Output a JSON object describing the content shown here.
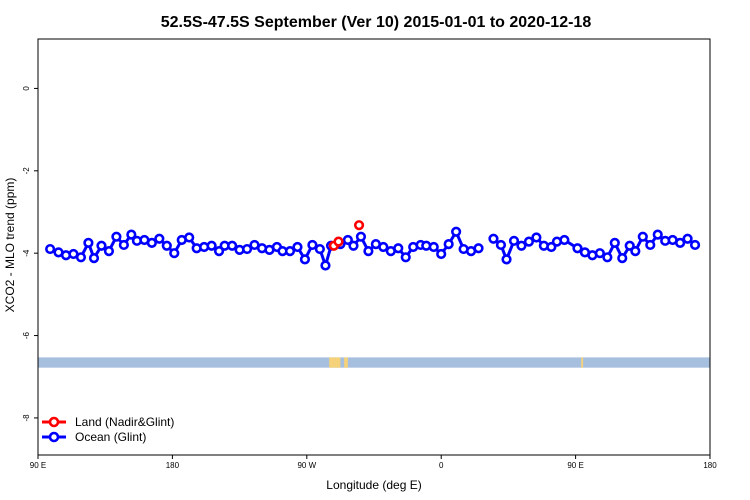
{
  "chart_data": {
    "type": "line",
    "title": "52.5S-47.5S September (Ver 10)   2015-01-01 to 2020-12-18",
    "xlabel": "Longitude (deg E)",
    "ylabel": "XCO2 - MLO trend (ppm)",
    "xlim": [
      90,
      450
    ],
    "ylim": [
      -8.9,
      1.2
    ],
    "x_ticks": [
      {
        "value": 90,
        "label": "90 E"
      },
      {
        "value": 162,
        "label": "180"
      },
      {
        "value": 234,
        "label": "90 W"
      },
      {
        "value": 306,
        "label": "0"
      },
      {
        "value": 378,
        "label": "90 E"
      },
      {
        "value": 450,
        "label": "180"
      }
    ],
    "y_ticks": [
      {
        "value": 0,
        "label": "0"
      },
      {
        "value": -2,
        "label": "-2"
      },
      {
        "value": -4,
        "label": "-4"
      },
      {
        "value": -6,
        "label": "-6"
      },
      {
        "value": -8,
        "label": "-8"
      }
    ],
    "series": [
      {
        "name": "Land (Nadir&Glint)",
        "color": "#ff0000",
        "points": [
          [
            248.5,
            -3.82
          ],
          [
            251,
            -3.72
          ],
          [
            262,
            -3.32
          ]
        ]
      },
      {
        "name": "Ocean (Glint)",
        "color": "#0000ff",
        "segments": [
          [
            [
              96.5,
              -3.9
            ],
            [
              101,
              -3.98
            ],
            [
              105,
              -4.05
            ],
            [
              109,
              -4.02
            ],
            [
              113,
              -4.1
            ],
            [
              117,
              -3.75
            ],
            [
              120,
              -4.12
            ],
            [
              124,
              -3.82
            ],
            [
              128,
              -3.95
            ],
            [
              132,
              -3.6
            ],
            [
              136,
              -3.8
            ],
            [
              140,
              -3.55
            ],
            [
              143,
              -3.7
            ],
            [
              147,
              -3.68
            ],
            [
              151,
              -3.75
            ],
            [
              155,
              -3.65
            ],
            [
              159,
              -3.82
            ],
            [
              163,
              -4.0
            ],
            [
              167,
              -3.68
            ],
            [
              171,
              -3.62
            ],
            [
              175,
              -3.88
            ],
            [
              179,
              -3.85
            ],
            [
              183,
              -3.82
            ],
            [
              187,
              -3.95
            ],
            [
              190,
              -3.82
            ],
            [
              194,
              -3.82
            ],
            [
              198,
              -3.92
            ],
            [
              202,
              -3.9
            ],
            [
              206,
              -3.8
            ],
            [
              210,
              -3.88
            ],
            [
              214,
              -3.92
            ],
            [
              218,
              -3.85
            ],
            [
              221,
              -3.95
            ],
            [
              225,
              -3.95
            ],
            [
              229,
              -3.85
            ],
            [
              233,
              -4.15
            ],
            [
              237,
              -3.8
            ],
            [
              241,
              -3.9
            ],
            [
              244,
              -4.3
            ],
            [
              247,
              -3.82
            ],
            [
              252,
              -3.78
            ],
            [
              256,
              -3.68
            ],
            [
              259,
              -3.82
            ],
            [
              263,
              -3.6
            ],
            [
              267,
              -3.95
            ],
            [
              271,
              -3.78
            ],
            [
              275,
              -3.85
            ],
            [
              279,
              -3.95
            ],
            [
              283,
              -3.88
            ],
            [
              287,
              -4.1
            ],
            [
              291,
              -3.85
            ],
            [
              295,
              -3.8
            ],
            [
              298,
              -3.82
            ],
            [
              302,
              -3.85
            ],
            [
              306,
              -4.02
            ],
            [
              310,
              -3.78
            ],
            [
              314,
              -3.48
            ],
            [
              318,
              -3.9
            ],
            [
              322,
              -3.95
            ],
            [
              326,
              -3.88
            ]
          ],
          [
            [
              334,
              -3.65
            ],
            [
              338,
              -3.8
            ],
            [
              341,
              -4.15
            ],
            [
              345,
              -3.7
            ],
            [
              349,
              -3.82
            ],
            [
              353,
              -3.72
            ],
            [
              357,
              -3.62
            ],
            [
              361,
              -3.82
            ],
            [
              365,
              -3.85
            ],
            [
              368,
              -3.72
            ],
            [
              372,
              -3.68
            ],
            [
              379,
              -3.88
            ],
            [
              383,
              -3.98
            ],
            [
              387,
              -4.05
            ],
            [
              391,
              -4.0
            ],
            [
              395,
              -4.1
            ],
            [
              399,
              -3.75
            ],
            [
              403,
              -4.12
            ],
            [
              407,
              -3.82
            ],
            [
              410,
              -3.95
            ],
            [
              414,
              -3.6
            ],
            [
              418,
              -3.8
            ],
            [
              422,
              -3.55
            ],
            [
              426,
              -3.7
            ],
            [
              430,
              -3.68
            ],
            [
              434,
              -3.75
            ],
            [
              438,
              -3.65
            ],
            [
              442,
              -3.8
            ]
          ]
        ]
      }
    ],
    "legend": {
      "position": "bottom-left"
    },
    "grid": false,
    "map_strip": {
      "y_range": [
        -6.53,
        -6.78
      ],
      "ocean_color": "#a7bfde",
      "land_color": "#f5d27a",
      "land_x": [
        [
          246,
          252
        ],
        [
          254,
          256
        ],
        [
          381,
          382
        ]
      ]
    }
  }
}
